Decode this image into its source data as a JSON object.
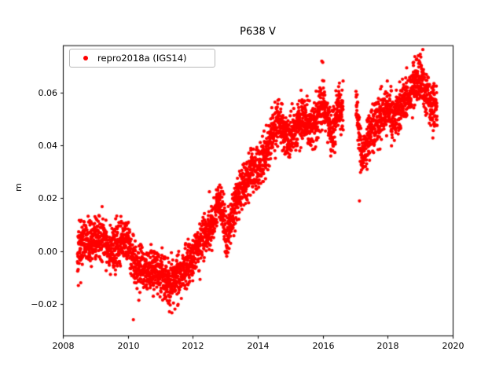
{
  "chart_data": {
    "type": "scatter",
    "title": "P638 V",
    "xlabel": "",
    "ylabel": "m",
    "xlim": [
      2008,
      2020
    ],
    "ylim": [
      -0.032,
      0.078
    ],
    "grid": false,
    "background": "#ffffff",
    "x_ticks": [
      2008,
      2010,
      2012,
      2014,
      2016,
      2018,
      2020
    ],
    "x_tick_labels": [
      "2008",
      "2010",
      "2012",
      "2014",
      "2016",
      "2018",
      "2020"
    ],
    "y_ticks": [
      -0.02,
      0.0,
      0.02,
      0.04,
      0.06
    ],
    "y_tick_labels": [
      "−0.02",
      "0.00",
      "0.02",
      "0.04",
      "0.06"
    ],
    "legend": {
      "position": "upper left",
      "entries": [
        {
          "label": "repro2018a (IGS14)",
          "color": "#ff0000",
          "marker": "dot"
        }
      ]
    },
    "series": [
      {
        "name": "repro2018a (IGS14)",
        "color": "#ff0000",
        "marker_radius_px": 2.1,
        "sampling": {
          "start": 2008.45,
          "end": 2019.52,
          "per_year": 330,
          "noise_std": 0.0042,
          "seed": 42
        },
        "gaps": [
          [
            2016.63,
            2017.02
          ]
        ],
        "trend": [
          [
            2008.45,
            0.0
          ],
          [
            2008.6,
            0.004
          ],
          [
            2008.8,
            0.003
          ],
          [
            2009.0,
            0.004
          ],
          [
            2009.2,
            0.006
          ],
          [
            2009.4,
            0.002
          ],
          [
            2009.6,
            0.0
          ],
          [
            2009.8,
            0.004
          ],
          [
            2010.0,
            0.004
          ],
          [
            2010.1,
            -0.002
          ],
          [
            2010.3,
            -0.006
          ],
          [
            2010.5,
            -0.008
          ],
          [
            2010.7,
            -0.009
          ],
          [
            2010.9,
            -0.007
          ],
          [
            2011.0,
            -0.008
          ],
          [
            2011.2,
            -0.012
          ],
          [
            2011.4,
            -0.012
          ],
          [
            2011.6,
            -0.009
          ],
          [
            2011.8,
            -0.006
          ],
          [
            2012.0,
            -0.002
          ],
          [
            2012.2,
            0.002
          ],
          [
            2012.4,
            0.006
          ],
          [
            2012.6,
            0.01
          ],
          [
            2012.8,
            0.02
          ],
          [
            2012.95,
            0.012
          ],
          [
            2013.05,
            0.003
          ],
          [
            2013.2,
            0.013
          ],
          [
            2013.4,
            0.022
          ],
          [
            2013.6,
            0.026
          ],
          [
            2013.8,
            0.03
          ],
          [
            2014.0,
            0.031
          ],
          [
            2014.2,
            0.036
          ],
          [
            2014.4,
            0.042
          ],
          [
            2014.6,
            0.05
          ],
          [
            2014.8,
            0.045
          ],
          [
            2015.0,
            0.042
          ],
          [
            2015.2,
            0.047
          ],
          [
            2015.4,
            0.05
          ],
          [
            2015.6,
            0.047
          ],
          [
            2015.8,
            0.049
          ],
          [
            2016.0,
            0.057
          ],
          [
            2016.15,
            0.05
          ],
          [
            2016.3,
            0.045
          ],
          [
            2016.5,
            0.056
          ],
          [
            2016.62,
            0.052
          ],
          [
            2017.02,
            0.056
          ],
          [
            2017.1,
            0.047
          ],
          [
            2017.22,
            0.034
          ],
          [
            2017.35,
            0.04
          ],
          [
            2017.5,
            0.046
          ],
          [
            2017.7,
            0.05
          ],
          [
            2017.9,
            0.052
          ],
          [
            2018.0,
            0.054
          ],
          [
            2018.2,
            0.05
          ],
          [
            2018.4,
            0.055
          ],
          [
            2018.6,
            0.058
          ],
          [
            2018.8,
            0.062
          ],
          [
            2019.0,
            0.066
          ],
          [
            2019.15,
            0.062
          ],
          [
            2019.3,
            0.057
          ],
          [
            2019.52,
            0.053
          ]
        ],
        "outliers": [
          [
            2008.55,
            -0.012
          ],
          [
            2010.17,
            -0.026
          ],
          [
            2011.28,
            -0.023
          ],
          [
            2011.45,
            -0.022
          ],
          [
            2012.83,
            0.025
          ],
          [
            2015.97,
            0.072
          ],
          [
            2016.0,
            0.0715
          ],
          [
            2017.13,
            0.019
          ],
          [
            2019.02,
            0.0735
          ]
        ]
      }
    ]
  }
}
